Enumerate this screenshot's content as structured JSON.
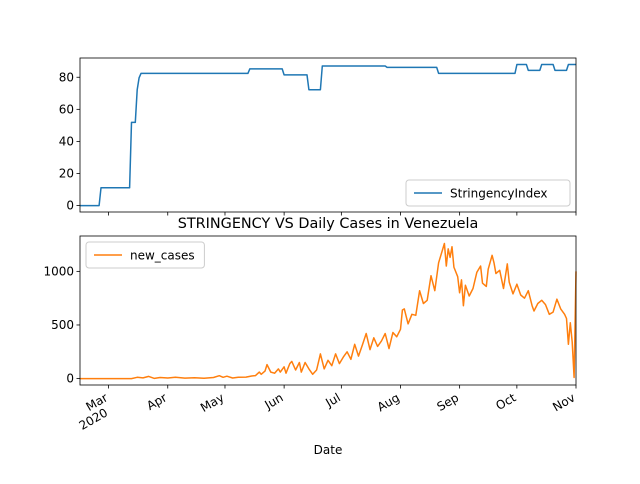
{
  "chart_data": [
    {
      "type": "line",
      "title": "",
      "xlabel": "",
      "ylabel": "",
      "x_axis": {
        "type": "date",
        "range": [
          "2020-02-15",
          "2020-11-01"
        ],
        "tick_dates": [
          "2020-03-01",
          "2020-04-01",
          "2020-05-01",
          "2020-06-01",
          "2020-07-01",
          "2020-08-01",
          "2020-09-01",
          "2020-10-01",
          "2020-11-01"
        ],
        "tick_labels_shown": false
      },
      "ylim": [
        -4,
        92
      ],
      "yticks": [
        0,
        20,
        40,
        60,
        80
      ],
      "grid": false,
      "legend_position": "lower right",
      "series": [
        {
          "name": "StringencyIndex",
          "color": "#1f77b4",
          "points": [
            [
              "2020-02-15",
              0
            ],
            [
              "2020-02-25",
              0
            ],
            [
              "2020-02-26",
              11.11
            ],
            [
              "2020-03-12",
              11.11
            ],
            [
              "2020-03-13",
              51.85
            ],
            [
              "2020-03-15",
              51.85
            ],
            [
              "2020-03-16",
              72.22
            ],
            [
              "2020-03-17",
              79.63
            ],
            [
              "2020-03-18",
              82.41
            ],
            [
              "2020-05-13",
              82.41
            ],
            [
              "2020-05-14",
              85.19
            ],
            [
              "2020-05-31",
              85.19
            ],
            [
              "2020-06-01",
              81.48
            ],
            [
              "2020-06-13",
              81.48
            ],
            [
              "2020-06-14",
              72.22
            ],
            [
              "2020-06-20",
              72.22
            ],
            [
              "2020-06-21",
              87.04
            ],
            [
              "2020-07-24",
              87.04
            ],
            [
              "2020-07-25",
              86.11
            ],
            [
              "2020-08-20",
              86.11
            ],
            [
              "2020-08-21",
              82.41
            ],
            [
              "2020-09-30",
              82.41
            ],
            [
              "2020-10-01",
              87.96
            ],
            [
              "2020-10-06",
              87.96
            ],
            [
              "2020-10-07",
              84.26
            ],
            [
              "2020-10-13",
              84.26
            ],
            [
              "2020-10-14",
              87.96
            ],
            [
              "2020-10-20",
              87.96
            ],
            [
              "2020-10-21",
              84.26
            ],
            [
              "2020-10-27",
              84.26
            ],
            [
              "2020-10-28",
              87.96
            ],
            [
              "2020-11-01",
              87.96
            ]
          ]
        }
      ]
    },
    {
      "type": "line",
      "title": "STRINGENCY VS Daily Cases in Venezuela",
      "xlabel": "Date",
      "ylabel": "",
      "x_axis": {
        "type": "date",
        "range": [
          "2020-02-15",
          "2020-11-01"
        ],
        "ticks": [
          {
            "date": "2020-03-01",
            "label": "Mar",
            "year": "2020"
          },
          {
            "date": "2020-04-01",
            "label": "Apr",
            "year": ""
          },
          {
            "date": "2020-05-01",
            "label": "May",
            "year": ""
          },
          {
            "date": "2020-06-01",
            "label": "Jun",
            "year": ""
          },
          {
            "date": "2020-07-01",
            "label": "Jul",
            "year": ""
          },
          {
            "date": "2020-08-01",
            "label": "Aug",
            "year": ""
          },
          {
            "date": "2020-09-01",
            "label": "Sep",
            "year": ""
          },
          {
            "date": "2020-10-01",
            "label": "Oct",
            "year": ""
          },
          {
            "date": "2020-11-01",
            "label": "Nov",
            "year": ""
          }
        ]
      },
      "ylim": [
        -60,
        1330
      ],
      "yticks": [
        0,
        500,
        1000
      ],
      "grid": false,
      "legend_position": "upper left",
      "series": [
        {
          "name": "new_cases",
          "color": "#ff7f0e",
          "points": [
            [
              "2020-02-15",
              0
            ],
            [
              "2020-03-13",
              0
            ],
            [
              "2020-03-16",
              12
            ],
            [
              "2020-03-19",
              6
            ],
            [
              "2020-03-22",
              20
            ],
            [
              "2020-03-25",
              2
            ],
            [
              "2020-03-28",
              10
            ],
            [
              "2020-04-01",
              5
            ],
            [
              "2020-04-05",
              12
            ],
            [
              "2020-04-10",
              4
            ],
            [
              "2020-04-15",
              8
            ],
            [
              "2020-04-20",
              3
            ],
            [
              "2020-04-25",
              10
            ],
            [
              "2020-04-28",
              27
            ],
            [
              "2020-04-30",
              12
            ],
            [
              "2020-05-02",
              22
            ],
            [
              "2020-05-05",
              5
            ],
            [
              "2020-05-08",
              12
            ],
            [
              "2020-05-12",
              14
            ],
            [
              "2020-05-15",
              24
            ],
            [
              "2020-05-17",
              28
            ],
            [
              "2020-05-19",
              60
            ],
            [
              "2020-05-20",
              40
            ],
            [
              "2020-05-22",
              70
            ],
            [
              "2020-05-23",
              130
            ],
            [
              "2020-05-25",
              60
            ],
            [
              "2020-05-27",
              50
            ],
            [
              "2020-05-29",
              90
            ],
            [
              "2020-05-30",
              60
            ],
            [
              "2020-06-01",
              110
            ],
            [
              "2020-06-02",
              50
            ],
            [
              "2020-06-04",
              140
            ],
            [
              "2020-06-05",
              160
            ],
            [
              "2020-06-07",
              80
            ],
            [
              "2020-06-09",
              150
            ],
            [
              "2020-06-10",
              60
            ],
            [
              "2020-06-12",
              150
            ],
            [
              "2020-06-14",
              90
            ],
            [
              "2020-06-16",
              40
            ],
            [
              "2020-06-18",
              80
            ],
            [
              "2020-06-20",
              230
            ],
            [
              "2020-06-22",
              90
            ],
            [
              "2020-06-24",
              170
            ],
            [
              "2020-06-26",
              120
            ],
            [
              "2020-06-28",
              230
            ],
            [
              "2020-06-30",
              140
            ],
            [
              "2020-07-02",
              200
            ],
            [
              "2020-07-04",
              250
            ],
            [
              "2020-07-06",
              180
            ],
            [
              "2020-07-08",
              320
            ],
            [
              "2020-07-10",
              210
            ],
            [
              "2020-07-12",
              310
            ],
            [
              "2020-07-14",
              420
            ],
            [
              "2020-07-16",
              270
            ],
            [
              "2020-07-18",
              380
            ],
            [
              "2020-07-20",
              300
            ],
            [
              "2020-07-22",
              350
            ],
            [
              "2020-07-24",
              420
            ],
            [
              "2020-07-26",
              280
            ],
            [
              "2020-07-28",
              430
            ],
            [
              "2020-07-30",
              390
            ],
            [
              "2020-08-01",
              460
            ],
            [
              "2020-08-02",
              640
            ],
            [
              "2020-08-03",
              650
            ],
            [
              "2020-08-05",
              510
            ],
            [
              "2020-08-07",
              600
            ],
            [
              "2020-08-09",
              590
            ],
            [
              "2020-08-11",
              820
            ],
            [
              "2020-08-13",
              700
            ],
            [
              "2020-08-15",
              730
            ],
            [
              "2020-08-17",
              960
            ],
            [
              "2020-08-19",
              820
            ],
            [
              "2020-08-21",
              1080
            ],
            [
              "2020-08-23",
              1200
            ],
            [
              "2020-08-24",
              1260
            ],
            [
              "2020-08-25",
              1050
            ],
            [
              "2020-08-26",
              1210
            ],
            [
              "2020-08-27",
              1130
            ],
            [
              "2020-08-28",
              1230
            ],
            [
              "2020-08-29",
              1040
            ],
            [
              "2020-08-31",
              950
            ],
            [
              "2020-09-01",
              800
            ],
            [
              "2020-09-02",
              920
            ],
            [
              "2020-09-03",
              680
            ],
            [
              "2020-09-04",
              870
            ],
            [
              "2020-09-06",
              770
            ],
            [
              "2020-09-08",
              840
            ],
            [
              "2020-09-10",
              990
            ],
            [
              "2020-09-12",
              1050
            ],
            [
              "2020-09-13",
              890
            ],
            [
              "2020-09-15",
              860
            ],
            [
              "2020-09-16",
              1020
            ],
            [
              "2020-09-18",
              1150
            ],
            [
              "2020-09-19",
              1080
            ],
            [
              "2020-09-20",
              980
            ],
            [
              "2020-09-22",
              1010
            ],
            [
              "2020-09-24",
              840
            ],
            [
              "2020-09-26",
              1070
            ],
            [
              "2020-09-27",
              900
            ],
            [
              "2020-09-29",
              790
            ],
            [
              "2020-10-01",
              880
            ],
            [
              "2020-10-03",
              780
            ],
            [
              "2020-10-05",
              750
            ],
            [
              "2020-10-07",
              820
            ],
            [
              "2020-10-09",
              680
            ],
            [
              "2020-10-10",
              630
            ],
            [
              "2020-10-12",
              700
            ],
            [
              "2020-10-14",
              730
            ],
            [
              "2020-10-16",
              690
            ],
            [
              "2020-10-18",
              600
            ],
            [
              "2020-10-20",
              620
            ],
            [
              "2020-10-22",
              740
            ],
            [
              "2020-10-24",
              650
            ],
            [
              "2020-10-26",
              600
            ],
            [
              "2020-10-27",
              560
            ],
            [
              "2020-10-28",
              320
            ],
            [
              "2020-10-29",
              520
            ],
            [
              "2020-10-30",
              340
            ],
            [
              "2020-10-31",
              10
            ],
            [
              "2020-11-01",
              1000
            ]
          ]
        }
      ]
    }
  ]
}
